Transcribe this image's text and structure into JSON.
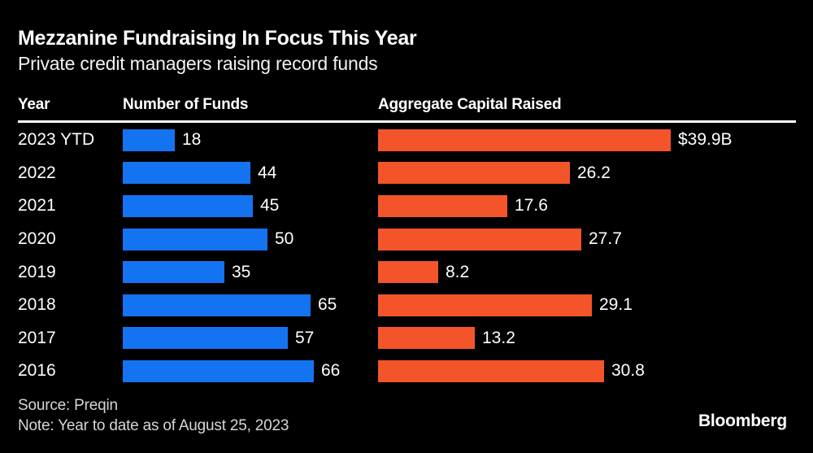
{
  "header": {
    "title": "Mezzanine Fundraising In Focus This Year",
    "subtitle": "Private credit managers raising record funds"
  },
  "columns": {
    "year": "Year",
    "funds": "Number of Funds",
    "capital": "Aggregate Capital Raised"
  },
  "chart_data": {
    "type": "bar",
    "orientation": "horizontal",
    "title": "Mezzanine Fundraising In Focus This Year",
    "subtitle": "Private credit managers raising record funds",
    "categories": [
      "2023 YTD",
      "2022",
      "2021",
      "2020",
      "2019",
      "2018",
      "2017",
      "2016"
    ],
    "series": [
      {
        "name": "Number of Funds",
        "color": "#1473F0",
        "values": [
          18,
          44,
          45,
          50,
          35,
          65,
          57,
          66
        ],
        "labels": [
          "18",
          "44",
          "45",
          "50",
          "35",
          "65",
          "57",
          "66"
        ],
        "axis_max": 66
      },
      {
        "name": "Aggregate Capital Raised",
        "color": "#F3542A",
        "values": [
          39.9,
          26.2,
          17.6,
          27.7,
          8.2,
          29.1,
          13.2,
          30.8
        ],
        "labels": [
          "$39.9B",
          "26.2",
          "17.6",
          "27.7",
          "8.2",
          "29.1",
          "13.2",
          "30.8"
        ],
        "unit": "billions USD",
        "axis_max": 39.9
      }
    ],
    "grid": false,
    "legend_position": "column-headers"
  },
  "footer": {
    "source": "Source: Preqin",
    "note": "Note: Year to date as of August 25, 2023",
    "logo": "Bloomberg"
  },
  "colors": {
    "background": "#000000",
    "funds_bar": "#1473F0",
    "capital_bar": "#F3542A",
    "text": "#FFFFFF",
    "footer_text": "#D6D6D6"
  }
}
